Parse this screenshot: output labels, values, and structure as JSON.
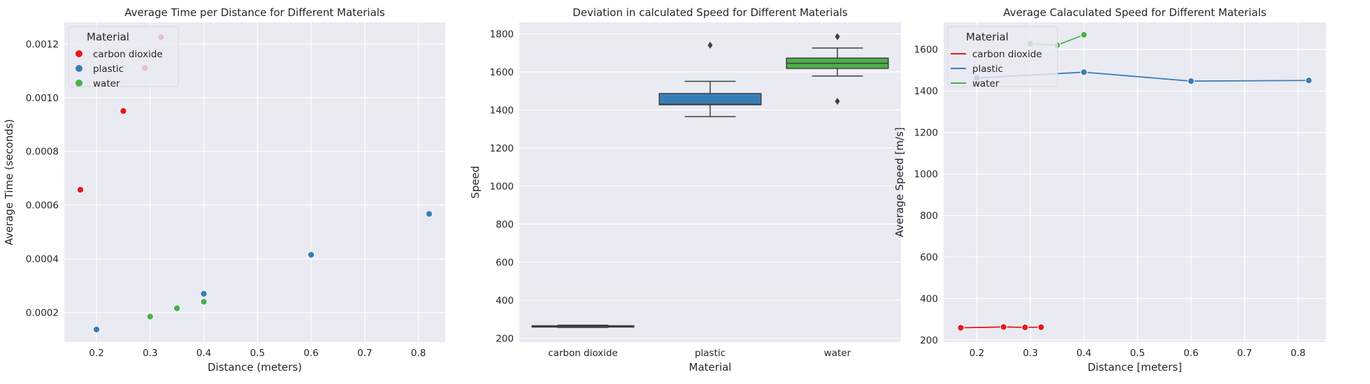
{
  "colors": {
    "background": "#eaeaf2",
    "grid": "#ffffff",
    "carbon dioxide": "#e41a1c",
    "plastic": "#377eb8",
    "water": "#4daf4a",
    "box_line": "#3f3f3f"
  },
  "chart_data": [
    {
      "type": "scatter",
      "title": "Average Time per Distance for Different Materials",
      "xlabel": "Distance (meters)",
      "ylabel": "Average Time (seconds)",
      "xlim": [
        0.14,
        0.85
      ],
      "ylim": [
        9e-05,
        0.00128
      ],
      "xticks": [
        0.2,
        0.3,
        0.4,
        0.5,
        0.6,
        0.7,
        0.8
      ],
      "xtick_labels": [
        "0.2",
        "0.3",
        "0.4",
        "0.5",
        "0.6",
        "0.7",
        "0.8"
      ],
      "yticks": [
        0.0002,
        0.0004,
        0.0006,
        0.0008,
        0.001,
        0.0012
      ],
      "ytick_labels": [
        "0.0002",
        "0.0004",
        "0.0006",
        "0.0008",
        "0.0010",
        "0.0012"
      ],
      "grid": true,
      "legend": {
        "title": "Material",
        "placement": "top-left",
        "entries": [
          "carbon dioxide",
          "plastic",
          "water"
        ]
      },
      "series": [
        {
          "name": "carbon dioxide",
          "x": [
            0.17,
            0.25,
            0.29,
            0.32
          ],
          "y": [
            0.000657,
            0.00095,
            0.00111,
            0.001225
          ]
        },
        {
          "name": "plastic",
          "x": [
            0.2,
            0.4,
            0.6,
            0.82
          ],
          "y": [
            0.000137,
            0.00027,
            0.000415,
            0.000567
          ]
        },
        {
          "name": "water",
          "x": [
            0.3,
            0.35,
            0.4
          ],
          "y": [
            0.000185,
            0.000216,
            0.00024
          ]
        }
      ]
    },
    {
      "type": "box",
      "title": "Deviation in calculated Speed for Different Materials",
      "xlabel": "Material",
      "ylabel": "Speed",
      "ylim": [
        180,
        1860
      ],
      "yticks": [
        200,
        400,
        600,
        800,
        1000,
        1200,
        1400,
        1600,
        1800
      ],
      "ytick_labels": [
        "200",
        "400",
        "600",
        "800",
        "1000",
        "1200",
        "1400",
        "1600",
        "1800"
      ],
      "categories": [
        "carbon dioxide",
        "plastic",
        "water"
      ],
      "grid": true,
      "boxes": [
        {
          "name": "carbon dioxide",
          "whisker_low": 257,
          "q1": 259,
          "median": 263,
          "q3": 266,
          "whisker_high": 269,
          "outliers": []
        },
        {
          "name": "plastic",
          "whisker_low": 1365,
          "q1": 1427,
          "median": 1430,
          "q3": 1486,
          "whisker_high": 1550,
          "outliers": [
            1740
          ]
        },
        {
          "name": "water",
          "whisker_low": 1578,
          "q1": 1618,
          "median": 1645,
          "q3": 1672,
          "whisker_high": 1725,
          "outliers": [
            1785,
            1445
          ]
        }
      ]
    },
    {
      "type": "line",
      "title": "Average Calaculated Speed for Different Materials",
      "xlabel": "Distance [meters]",
      "ylabel": "Average Speed [m/s]",
      "xlim": [
        0.138,
        0.852
      ],
      "ylim": [
        190,
        1730
      ],
      "xticks": [
        0.2,
        0.3,
        0.4,
        0.5,
        0.6,
        0.7,
        0.8
      ],
      "xtick_labels": [
        "0.2",
        "0.3",
        "0.4",
        "0.5",
        "0.6",
        "0.7",
        "0.8"
      ],
      "yticks": [
        200,
        400,
        600,
        800,
        1000,
        1200,
        1400,
        1600
      ],
      "ytick_labels": [
        "200",
        "400",
        "600",
        "800",
        "1000",
        "1200",
        "1400",
        "1600"
      ],
      "grid": true,
      "legend": {
        "title": "Material",
        "placement": "top-left",
        "entries": [
          "carbon dioxide",
          "plastic",
          "water"
        ]
      },
      "series": [
        {
          "name": "carbon dioxide",
          "x": [
            0.17,
            0.25,
            0.29,
            0.32
          ],
          "y": [
            259,
            263,
            261,
            262
          ]
        },
        {
          "name": "plastic",
          "x": [
            0.2,
            0.4,
            0.6,
            0.82
          ],
          "y": [
            1462,
            1490,
            1447,
            1450
          ]
        },
        {
          "name": "water",
          "x": [
            0.3,
            0.35,
            0.4
          ],
          "y": [
            1627,
            1620,
            1670
          ]
        }
      ]
    }
  ]
}
